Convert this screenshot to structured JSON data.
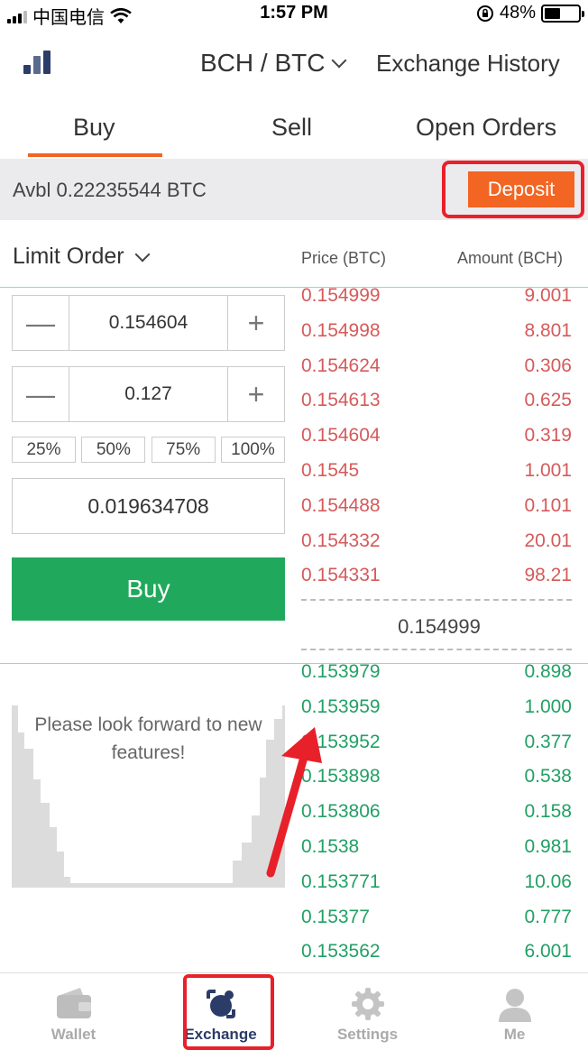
{
  "status_bar": {
    "carrier": "中国电信",
    "time": "1:57 PM",
    "battery": "48%",
    "battery_level": 0.48
  },
  "header": {
    "pair": "BCH / BTC",
    "history": "Exchange History"
  },
  "tabs": [
    {
      "label": "Buy",
      "active": true
    },
    {
      "label": "Sell",
      "active": false
    },
    {
      "label": "Open Orders",
      "active": false
    }
  ],
  "balance": {
    "text": "Avbl 0.22235544 BTC",
    "deposit_label": "Deposit"
  },
  "order_form": {
    "order_type": "Limit Order",
    "price": "0.154604",
    "amount": "0.127",
    "percentages": [
      "25%",
      "50%",
      "75%",
      "100%"
    ],
    "total": "0.019634708",
    "buy_label": "Buy"
  },
  "order_book": {
    "price_header": "Price (BTC)",
    "amount_header": "Amount (BCH)",
    "asks": [
      {
        "price": "0.154999",
        "amount": "9.001"
      },
      {
        "price": "0.154998",
        "amount": "8.801"
      },
      {
        "price": "0.154624",
        "amount": "0.306"
      },
      {
        "price": "0.154613",
        "amount": "0.625"
      },
      {
        "price": "0.154604",
        "amount": "0.319"
      },
      {
        "price": "0.1545",
        "amount": "1.001"
      },
      {
        "price": "0.154488",
        "amount": "0.101"
      },
      {
        "price": "0.154332",
        "amount": "20.01"
      },
      {
        "price": "0.154331",
        "amount": "98.21"
      }
    ],
    "last_price": "0.154999",
    "bids": [
      {
        "price": "0.153979",
        "amount": "0.898"
      },
      {
        "price": "0.153959",
        "amount": "1.000"
      },
      {
        "price": "0.153952",
        "amount": "0.377"
      },
      {
        "price": "0.153898",
        "amount": "0.538"
      },
      {
        "price": "0.153806",
        "amount": "0.158"
      },
      {
        "price": "0.1538",
        "amount": "0.981"
      },
      {
        "price": "0.153771",
        "amount": "10.06"
      },
      {
        "price": "0.15377",
        "amount": "0.777"
      },
      {
        "price": "0.153562",
        "amount": "6.001"
      }
    ]
  },
  "depth_chart": {
    "message": "Please look forward to new features!"
  },
  "tab_bar": [
    {
      "label": "Wallet",
      "icon": "wallet-icon",
      "active": false
    },
    {
      "label": "Exchange",
      "icon": "exchange-icon",
      "active": true
    },
    {
      "label": "Settings",
      "icon": "gear-icon",
      "active": false
    },
    {
      "label": "Me",
      "icon": "person-icon",
      "active": false
    }
  ],
  "colors": {
    "accent": "#f26522",
    "buy_green": "#20a95c",
    "ask_red": "#d65a5a",
    "bid_green": "#22a065",
    "highlight_red": "#e8202a",
    "tab_active": "#2b3c69"
  }
}
